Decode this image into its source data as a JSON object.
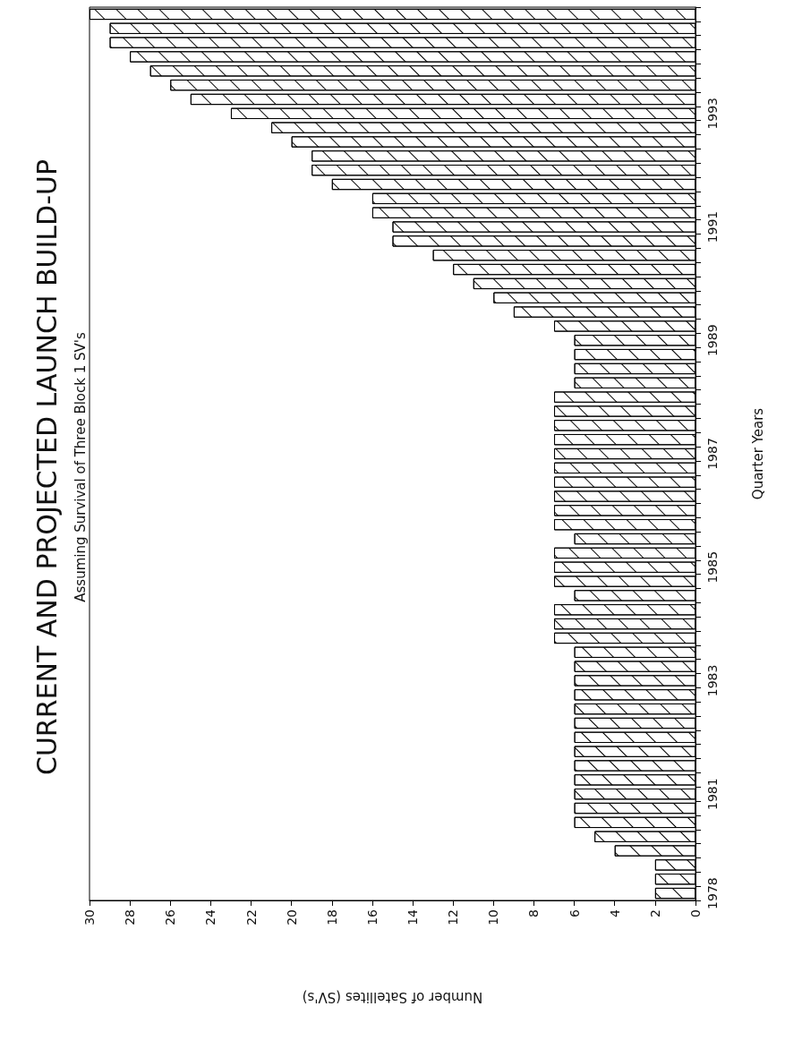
{
  "chart_data": {
    "type": "bar",
    "orientation": "horizontal",
    "title": "CURRENT AND PROJECTED LAUNCH BUILD-UP",
    "subtitle": "Assuming Survival of Three Block 1 SV's",
    "xlabel": "Number of Satellites (SV's)",
    "ylabel": "Quarter Years",
    "categories": [
      null,
      null,
      null,
      null,
      null,
      null,
      null,
      "1993",
      null,
      null,
      null,
      null,
      null,
      null,
      null,
      "1991",
      null,
      null,
      null,
      null,
      null,
      null,
      null,
      "1989",
      null,
      null,
      null,
      null,
      null,
      null,
      null,
      "1987",
      null,
      null,
      null,
      null,
      null,
      null,
      null,
      "1985",
      null,
      null,
      null,
      null,
      null,
      null,
      null,
      "1983",
      null,
      null,
      null,
      null,
      null,
      null,
      null,
      "1981",
      null,
      null,
      null,
      null,
      null,
      null,
      "1978"
    ],
    "values": [
      30,
      29,
      29,
      28,
      27,
      26,
      25,
      23,
      21,
      20,
      19,
      19,
      18,
      16,
      16,
      15,
      15,
      13,
      12,
      11,
      10,
      9,
      7,
      6,
      6,
      6,
      6,
      7,
      7,
      7,
      7,
      7,
      7,
      7,
      7,
      7,
      7,
      6,
      7,
      7,
      7,
      6,
      7,
      7,
      7,
      6,
      6,
      6,
      6,
      6,
      6,
      6,
      6,
      6,
      6,
      6,
      6,
      6,
      5,
      4,
      2,
      2,
      2
    ],
    "color": "#ffffff",
    "xlim": [
      30,
      0
    ],
    "xticks": [
      30,
      28,
      26,
      24,
      22,
      20,
      18,
      16,
      14,
      12,
      10,
      8,
      6,
      4,
      2,
      0
    ],
    "grid": false
  }
}
